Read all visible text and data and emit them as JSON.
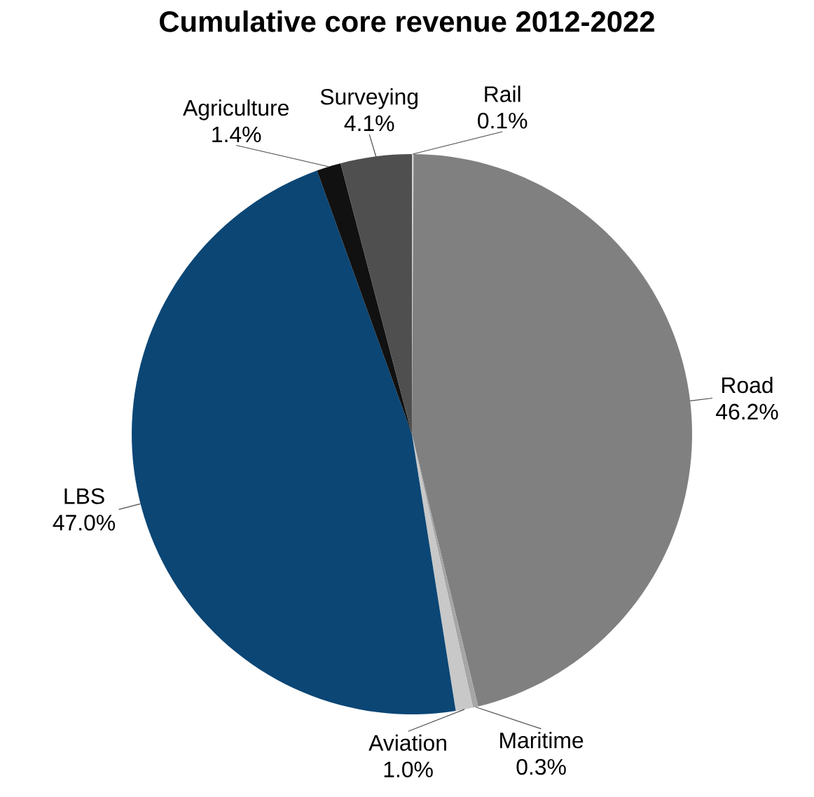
{
  "chart_data": {
    "type": "pie",
    "title": "Cumulative core revenue 2012-2022",
    "categories": [
      "Road",
      "Maritime",
      "Aviation",
      "LBS",
      "Agriculture",
      "Surveying",
      "Rail"
    ],
    "values": [
      46.2,
      0.3,
      1.0,
      47.0,
      1.4,
      4.1,
      0.1
    ],
    "value_labels": [
      "46.2%",
      "0.3%",
      "1.0%",
      "47.0%",
      "1.4%",
      "4.1%",
      "0.1%"
    ],
    "colors": [
      "#808080",
      "#a6a6a6",
      "#c8c8c8",
      "#0b4675",
      "#111111",
      "#4f4f4f",
      "#d0d0d0"
    ]
  }
}
